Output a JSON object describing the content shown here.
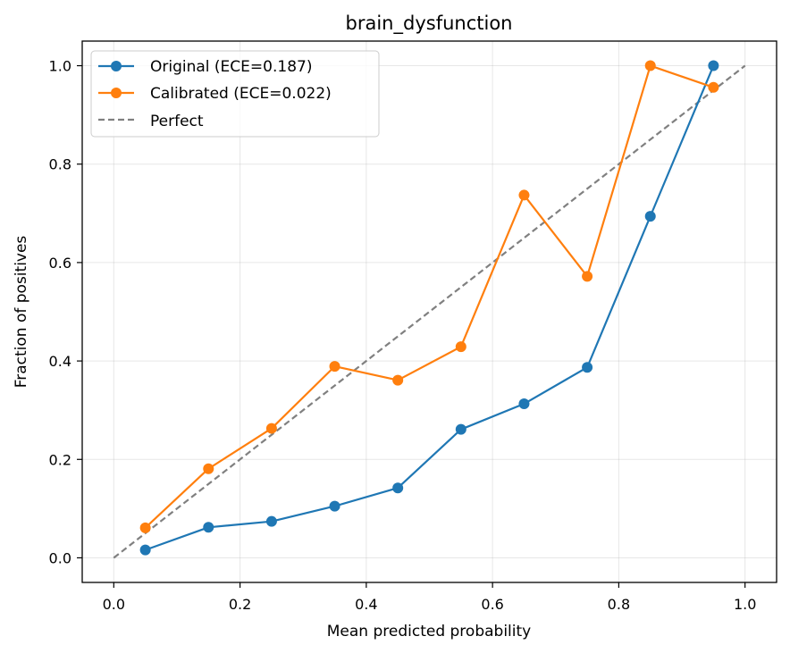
{
  "chart_data": {
    "type": "line",
    "title": "brain_dysfunction",
    "xlabel": "Mean predicted probability",
    "ylabel": "Fraction of positives",
    "xlim": [
      -0.05,
      1.05
    ],
    "ylim": [
      -0.05,
      1.05
    ],
    "grid": true,
    "legend_position": "top-left",
    "x_ticks": [
      "0.0",
      "0.2",
      "0.4",
      "0.6",
      "0.8",
      "1.0"
    ],
    "y_ticks": [
      "0.0",
      "0.2",
      "0.4",
      "0.6",
      "0.8",
      "1.0"
    ],
    "series": [
      {
        "name": "Original (ECE=0.187)",
        "color": "#1f77b4",
        "style": "solid-markers",
        "x": [
          0.05,
          0.15,
          0.25,
          0.35,
          0.45,
          0.55,
          0.65,
          0.75,
          0.85,
          0.95
        ],
        "y": [
          0.016,
          0.062,
          0.074,
          0.105,
          0.142,
          0.261,
          0.313,
          0.387,
          0.694,
          1.0
        ]
      },
      {
        "name": "Calibrated (ECE=0.022)",
        "color": "#ff7f0e",
        "style": "solid-markers",
        "x": [
          0.05,
          0.15,
          0.25,
          0.35,
          0.45,
          0.55,
          0.65,
          0.75,
          0.85,
          0.95
        ],
        "y": [
          0.061,
          0.181,
          0.263,
          0.389,
          0.361,
          0.429,
          0.737,
          0.572,
          1.0,
          0.956
        ]
      },
      {
        "name": "Perfect",
        "color": "#808080",
        "style": "dashed",
        "x": [
          0.0,
          1.0
        ],
        "y": [
          0.0,
          1.0
        ]
      }
    ]
  }
}
